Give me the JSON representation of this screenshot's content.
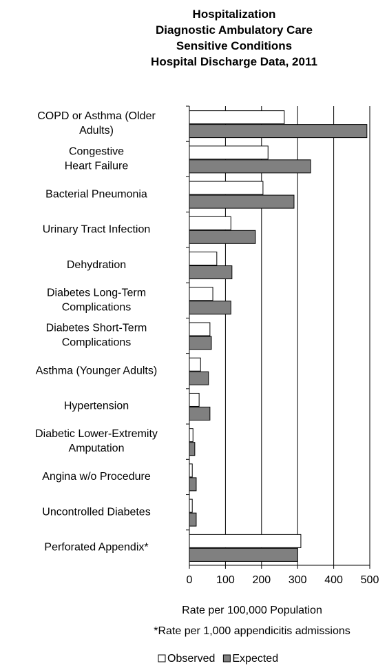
{
  "chart_data": {
    "type": "barh",
    "title": "Hospitalization\nDiagnostic Ambulatory Care\nSensitive Conditions\nHospital Discharge Data, 2011",
    "categories": [
      "COPD or Asthma (Older\nAdults)",
      "Congestive\nHeart Failure",
      "Bacterial Pneumonia",
      "Urinary Tract Infection",
      "Dehydration",
      "Diabetes Long-Term\nComplications",
      "Diabetes Short-Term\nComplications",
      "Asthma (Younger Adults)",
      "Hypertension",
      "Diabetic Lower-Extremity\nAmputation",
      "Angina w/o Procedure",
      "Uncontrolled Diabetes",
      "Perforated Appendix*"
    ],
    "series": [
      {
        "name": "Observed",
        "color": "#ffffff",
        "values": [
          263,
          218,
          204,
          115,
          76,
          65,
          57,
          31,
          27,
          10,
          8,
          8,
          309
        ]
      },
      {
        "name": "Expected",
        "color": "#808080",
        "values": [
          492,
          336,
          290,
          183,
          118,
          115,
          61,
          53,
          57,
          15,
          19,
          19,
          300
        ]
      }
    ],
    "xlim": [
      0,
      500
    ],
    "xticks": [
      0,
      100,
      200,
      300,
      400,
      500
    ],
    "xlabel": "Rate per 100,000 Population",
    "annotation": "*Rate per 1,000 appendicitis admissions",
    "grid": true,
    "legend": "bottom"
  }
}
